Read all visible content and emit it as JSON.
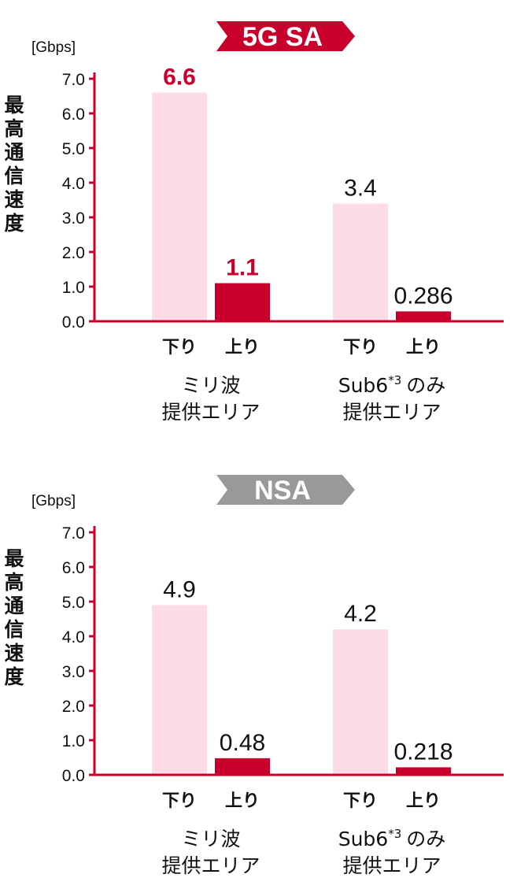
{
  "colors": {
    "accent": "#C8002B",
    "light_bar": "#FDDCE6",
    "dark_bar": "#C8002B",
    "nsa_banner": "#999999",
    "axis_text": "#111111"
  },
  "chart_data": [
    {
      "type": "bar",
      "banner": "5G SA",
      "banner_color": "#C8002B",
      "unit_label": "[Gbps]",
      "ylabel": "最高通信速度",
      "ylim": [
        0,
        7
      ],
      "yticks": [
        "7.0",
        "6.0",
        "5.0",
        "4.0",
        "3.0",
        "2.0",
        "1.0",
        "0.0"
      ],
      "groups": [
        {
          "area_line1": "ミリ波",
          "area_line2": "提供エリア",
          "area_sup": "",
          "area_suffix": "",
          "bars": [
            {
              "label": "下り",
              "value": 6.6,
              "value_label": "6.6",
              "kind": "down",
              "label_color": "#C8002B"
            },
            {
              "label": "上り",
              "value": 1.1,
              "value_label": "1.1",
              "kind": "up",
              "label_color": "#C8002B"
            }
          ]
        },
        {
          "area_line1": "Sub6",
          "area_sup": "*3",
          "area_suffix": "のみ",
          "area_line2": "提供エリア",
          "bars": [
            {
              "label": "下り",
              "value": 3.4,
              "value_label": "3.4",
              "kind": "down",
              "label_color": "#111111"
            },
            {
              "label": "上り",
              "value": 0.286,
              "value_label": "0.286",
              "kind": "up",
              "label_color": "#111111"
            }
          ]
        }
      ]
    },
    {
      "type": "bar",
      "banner": "NSA",
      "banner_color": "#999999",
      "unit_label": "[Gbps]",
      "ylabel": "最高通信速度",
      "ylim": [
        0,
        7
      ],
      "yticks": [
        "7.0",
        "6.0",
        "5.0",
        "4.0",
        "3.0",
        "2.0",
        "1.0",
        "0.0"
      ],
      "groups": [
        {
          "area_line1": "ミリ波",
          "area_line2": "提供エリア",
          "area_sup": "",
          "area_suffix": "",
          "bars": [
            {
              "label": "下り",
              "value": 4.9,
              "value_label": "4.9",
              "kind": "down",
              "label_color": "#111111"
            },
            {
              "label": "上り",
              "value": 0.48,
              "value_label": "0.48",
              "kind": "up",
              "label_color": "#111111"
            }
          ]
        },
        {
          "area_line1": "Sub6",
          "area_sup": "*3",
          "area_suffix": "のみ",
          "area_line2": "提供エリア",
          "bars": [
            {
              "label": "下り",
              "value": 4.2,
              "value_label": "4.2",
              "kind": "down",
              "label_color": "#111111"
            },
            {
              "label": "上り",
              "value": 0.218,
              "value_label": "0.218",
              "kind": "up",
              "label_color": "#111111"
            }
          ]
        }
      ]
    }
  ]
}
